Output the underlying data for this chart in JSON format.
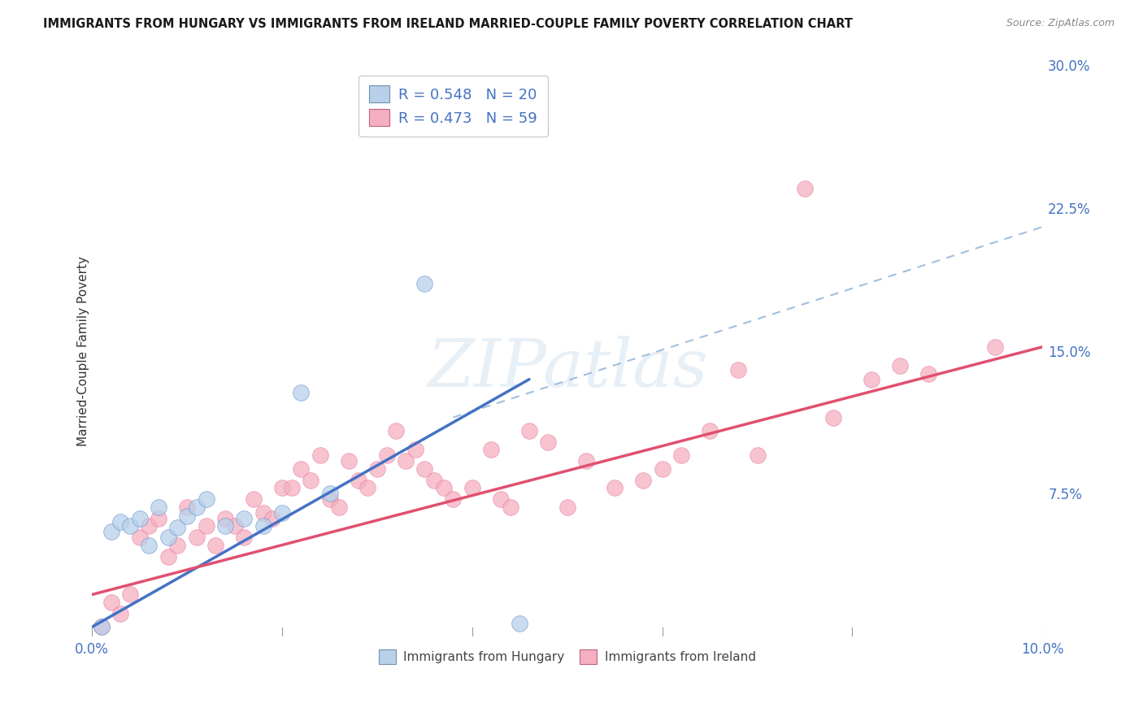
{
  "title": "IMMIGRANTS FROM HUNGARY VS IMMIGRANTS FROM IRELAND MARRIED-COUPLE FAMILY POVERTY CORRELATION CHART",
  "source": "Source: ZipAtlas.com",
  "ylabel": "Married-Couple Family Poverty",
  "xlim": [
    0.0,
    0.1
  ],
  "ylim": [
    0.0,
    0.3
  ],
  "xticks": [
    0.0,
    0.02,
    0.04,
    0.06,
    0.08,
    0.1
  ],
  "xtick_labels": [
    "0.0%",
    "",
    "",
    "",
    "",
    "10.0%"
  ],
  "yticks": [
    0.0,
    0.075,
    0.15,
    0.225,
    0.3
  ],
  "ytick_labels": [
    "",
    "7.5%",
    "15.0%",
    "22.5%",
    "30.0%"
  ],
  "grid_color": "#d8d8d8",
  "background_color": "#ffffff",
  "hungary_color": "#b8d0ea",
  "ireland_color": "#f5afc0",
  "hungary_R": 0.548,
  "hungary_N": 20,
  "ireland_R": 0.473,
  "ireland_N": 59,
  "legend_labels": [
    "Immigrants from Hungary",
    "Immigrants from Ireland"
  ],
  "hungary_line_color": "#4472c4",
  "ireland_line_color": "#e05070",
  "dashed_line_color": "#8ab0d8",
  "watermark_text": "ZIPatlas",
  "hungary_line_x": [
    0.0,
    0.046
  ],
  "hungary_line_y": [
    0.005,
    0.135
  ],
  "ireland_line_x": [
    0.0,
    0.1
  ],
  "ireland_line_y": [
    0.022,
    0.152
  ],
  "dashed_line_x": [
    0.038,
    0.1
  ],
  "dashed_line_y": [
    0.115,
    0.215
  ],
  "hungary_scatter_x": [
    0.001,
    0.002,
    0.003,
    0.004,
    0.005,
    0.006,
    0.007,
    0.008,
    0.009,
    0.01,
    0.011,
    0.012,
    0.014,
    0.016,
    0.018,
    0.02,
    0.022,
    0.025,
    0.035,
    0.045
  ],
  "hungary_scatter_y": [
    0.005,
    0.055,
    0.06,
    0.058,
    0.062,
    0.048,
    0.068,
    0.052,
    0.057,
    0.063,
    0.068,
    0.072,
    0.058,
    0.062,
    0.058,
    0.065,
    0.128,
    0.075,
    0.185,
    0.007
  ],
  "ireland_scatter_x": [
    0.001,
    0.002,
    0.003,
    0.004,
    0.005,
    0.006,
    0.007,
    0.008,
    0.009,
    0.01,
    0.011,
    0.012,
    0.013,
    0.014,
    0.015,
    0.016,
    0.017,
    0.018,
    0.019,
    0.02,
    0.021,
    0.022,
    0.023,
    0.024,
    0.025,
    0.026,
    0.027,
    0.028,
    0.029,
    0.03,
    0.031,
    0.032,
    0.033,
    0.034,
    0.035,
    0.036,
    0.037,
    0.038,
    0.04,
    0.042,
    0.043,
    0.044,
    0.046,
    0.048,
    0.05,
    0.052,
    0.055,
    0.058,
    0.06,
    0.062,
    0.065,
    0.068,
    0.07,
    0.075,
    0.078,
    0.082,
    0.085,
    0.088,
    0.095
  ],
  "ireland_scatter_y": [
    0.005,
    0.018,
    0.012,
    0.022,
    0.052,
    0.058,
    0.062,
    0.042,
    0.048,
    0.068,
    0.052,
    0.058,
    0.048,
    0.062,
    0.058,
    0.052,
    0.072,
    0.065,
    0.062,
    0.078,
    0.078,
    0.088,
    0.082,
    0.095,
    0.072,
    0.068,
    0.092,
    0.082,
    0.078,
    0.088,
    0.095,
    0.108,
    0.092,
    0.098,
    0.088,
    0.082,
    0.078,
    0.072,
    0.078,
    0.098,
    0.072,
    0.068,
    0.108,
    0.102,
    0.068,
    0.092,
    0.078,
    0.082,
    0.088,
    0.095,
    0.108,
    0.14,
    0.095,
    0.235,
    0.115,
    0.135,
    0.142,
    0.138,
    0.152
  ]
}
